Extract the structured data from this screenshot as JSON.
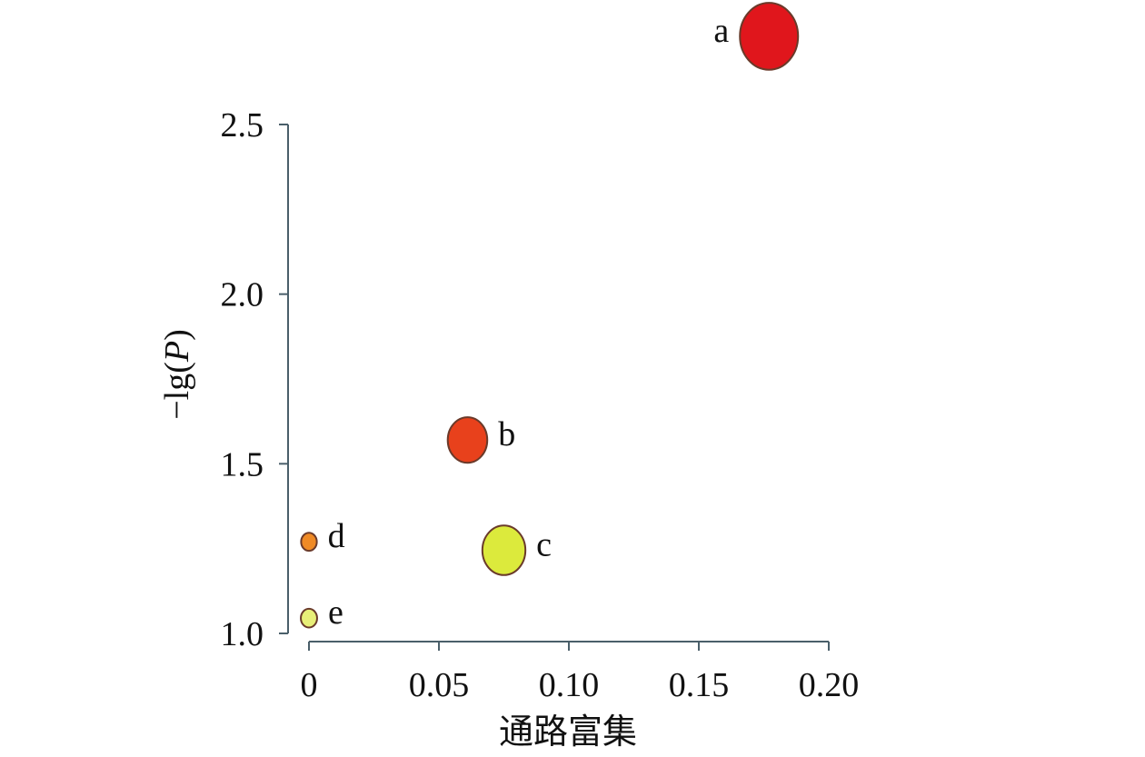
{
  "chart_data": {
    "type": "scatter",
    "title": "",
    "xlabel": "通路富集",
    "ylabel_parts": [
      "−lg(",
      "P",
      ")"
    ],
    "xlim": [
      0,
      0.2
    ],
    "ylim": [
      1.0,
      2.8
    ],
    "x_ticks": [
      0,
      0.05,
      0.1,
      0.15,
      0.2
    ],
    "x_tick_labels": [
      "0",
      "0.05",
      "0.10",
      "0.15",
      "0.20"
    ],
    "y_ticks": [
      1.0,
      1.5,
      2.0,
      2.5
    ],
    "y_tick_labels": [
      "1.0",
      "1.5",
      "2.0",
      "2.5"
    ],
    "grid": false,
    "points": [
      {
        "label": "a",
        "x": 0.177,
        "y": 2.76,
        "size": 1.0,
        "color": "#e0161c",
        "label_side": "left"
      },
      {
        "label": "b",
        "x": 0.061,
        "y": 1.57,
        "size": 0.68,
        "color": "#e8411c",
        "label_side": "right"
      },
      {
        "label": "c",
        "x": 0.075,
        "y": 1.245,
        "size": 0.74,
        "color": "#dcea3c",
        "label_side": "right"
      },
      {
        "label": "d",
        "x": 0.0,
        "y": 1.27,
        "size": 0.27,
        "color": "#ef8a25",
        "label_side": "right"
      },
      {
        "label": "e",
        "x": 0.0,
        "y": 1.045,
        "size": 0.28,
        "color": "#e8ef78",
        "label_side": "right"
      }
    ]
  }
}
